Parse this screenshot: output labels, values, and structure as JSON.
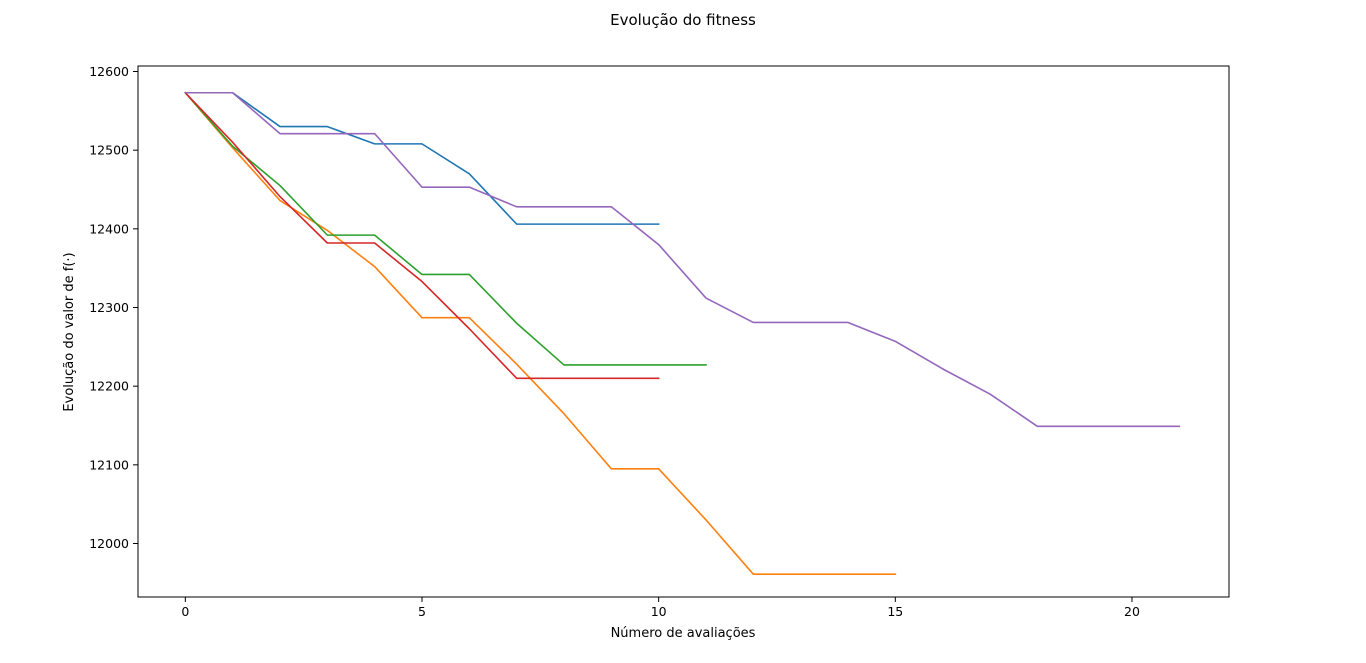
{
  "chart_data": {
    "type": "line",
    "title": "Evolução do fitness",
    "xlabel": "Número de avaliações",
    "ylabel": "Evolução do valor de f(·)",
    "xlim": [
      -1.0,
      22.05
    ],
    "ylim": [
      11932,
      12607
    ],
    "xticks": [
      0,
      5,
      10,
      15,
      20
    ],
    "yticks": [
      12000,
      12100,
      12200,
      12300,
      12400,
      12500,
      12600
    ],
    "grid": false,
    "series": [
      {
        "color": "#1f77b4",
        "x": [
          0,
          1,
          2,
          3,
          4,
          5,
          6,
          7,
          8,
          9,
          10
        ],
        "y": [
          12573,
          12573,
          12530,
          12530,
          12508,
          12508,
          12470,
          12406,
          12406,
          12406,
          12406
        ]
      },
      {
        "color": "#ff7f0e",
        "x": [
          0,
          1,
          2,
          3,
          4,
          5,
          6,
          7,
          8,
          9,
          10,
          11,
          12,
          13,
          14,
          15
        ],
        "y": [
          12573,
          12503,
          12436,
          12398,
          12352,
          12287,
          12287,
          12228,
          12165,
          12095,
          12095,
          12030,
          11961,
          11961,
          11961,
          11961
        ]
      },
      {
        "color": "#2ca02c",
        "x": [
          0,
          1,
          2,
          3,
          4,
          5,
          6,
          7,
          8,
          9,
          10,
          11
        ],
        "y": [
          12573,
          12505,
          12455,
          12392,
          12392,
          12342,
          12342,
          12280,
          12227,
          12227,
          12227,
          12227
        ]
      },
      {
        "color": "#d62728",
        "x": [
          0,
          1,
          2,
          3,
          4,
          5,
          6,
          7,
          8,
          9,
          10
        ],
        "y": [
          12573,
          12510,
          12441,
          12382,
          12382,
          12333,
          12273,
          12210,
          12210,
          12210,
          12210
        ]
      },
      {
        "color": "#9467bd",
        "x": [
          0,
          1,
          2,
          3,
          4,
          5,
          6,
          7,
          8,
          9,
          10,
          11,
          12,
          13,
          14,
          15,
          16,
          17,
          18,
          19,
          20,
          21
        ],
        "y": [
          12573,
          12573,
          12521,
          12521,
          12521,
          12453,
          12453,
          12428,
          12428,
          12428,
          12380,
          12312,
          12281,
          12281,
          12281,
          12257,
          12222,
          12190,
          12149,
          12149,
          12149,
          12149
        ]
      }
    ]
  }
}
